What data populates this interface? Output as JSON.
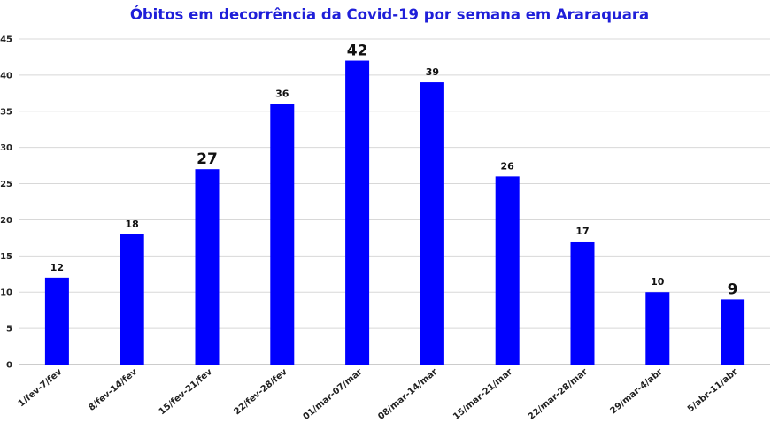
{
  "chart_data": {
    "type": "bar",
    "title": "Óbitos em decorrência da Covid-19 por semana em Araraquara",
    "xlabel": "",
    "ylabel": "",
    "categories": [
      "1/fev-7/fev",
      "8/fev-14/fev",
      "15/fev-21/fev",
      "22/fev-28/fev",
      "01/mar-07/mar",
      "08/mar-14/mar",
      "15/mar-21/mar",
      "22/mar-28/mar",
      "29/mar-4/abr",
      "5/abr-11/abr"
    ],
    "values": [
      12,
      18,
      27,
      36,
      42,
      39,
      26,
      17,
      10,
      9
    ],
    "emphasized_labels": [
      "27",
      "42",
      "9"
    ],
    "ylim": [
      0,
      45
    ],
    "yticks": [
      0,
      5,
      10,
      15,
      20,
      25,
      30,
      35,
      40,
      45
    ],
    "grid": true,
    "legend": "none",
    "bar_color": "#0000ff",
    "title_color": "#1f1fd9"
  }
}
